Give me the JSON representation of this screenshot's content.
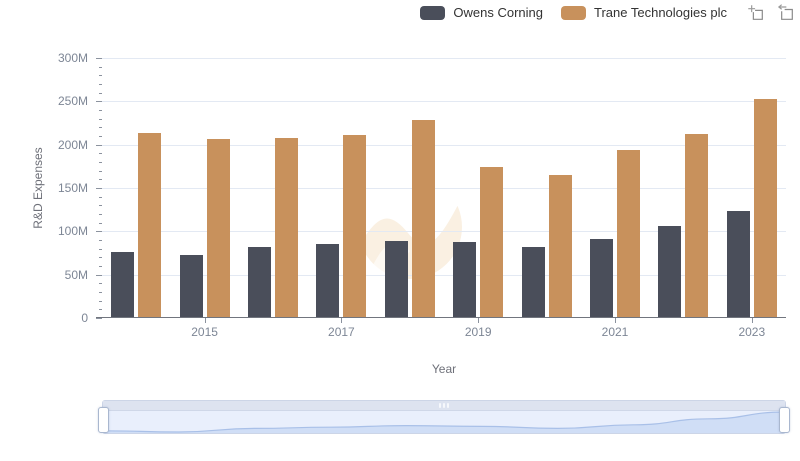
{
  "legend": {
    "items": [
      {
        "label": "Owens Corning",
        "color": "#4a4e5a"
      },
      {
        "label": "Trane Technologies plc",
        "color": "#c8915c"
      }
    ]
  },
  "toolbox": {
    "zoom_icon": "box-zoom",
    "reset_icon": "reset-zoom"
  },
  "chart_data": {
    "type": "bar",
    "title": "",
    "xlabel": "Year",
    "ylabel": "R&D Expenses",
    "categories": [
      "2014",
      "2015",
      "2016",
      "2017",
      "2018",
      "2019",
      "2020",
      "2021",
      "2022",
      "2023"
    ],
    "series": [
      {
        "name": "Owens Corning",
        "color": "#4a4e5a",
        "values": [
          75,
          72,
          81,
          84,
          88,
          86,
          81,
          90,
          105,
          122
        ]
      },
      {
        "name": "Trane Technologies plc",
        "color": "#c8915c",
        "values": [
          212,
          205,
          207,
          210,
          227,
          173,
          164,
          193,
          211,
          252
        ]
      }
    ],
    "value_unit": "M (millions USD)",
    "ylim": [
      0,
      300
    ],
    "y_tick_values": [
      0,
      50,
      100,
      150,
      200,
      250,
      300
    ],
    "y_tick_labels": [
      "0",
      "50M",
      "100M",
      "150M",
      "200M",
      "250M",
      "300M"
    ],
    "y_minor_tick_step": 10,
    "x_tick_labels": [
      "2015",
      "2017",
      "2019",
      "2021",
      "2023"
    ],
    "grid": true,
    "legend_position": "top-right",
    "datazoom_slider": {
      "range": "full",
      "preview_series": "Owens Corning"
    }
  },
  "colors": {
    "gridline": "#e3e9f3",
    "axis_line": "#71757e",
    "tick_text": "#7d8695",
    "watermark": "#faf0e2",
    "slider_area_fill": "#d0def6",
    "slider_area_line": "#a9c0e8"
  }
}
